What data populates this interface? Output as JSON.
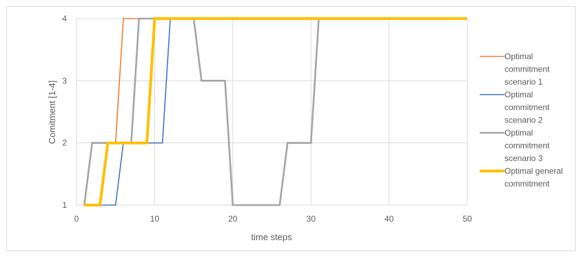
{
  "chart_data": {
    "type": "line",
    "title": "",
    "xlabel": "time steps",
    "ylabel": "Comitment [1-4]",
    "xlim": [
      0,
      50
    ],
    "ylim": [
      1,
      4
    ],
    "x_ticks": [
      0,
      10,
      20,
      30,
      40,
      50
    ],
    "y_ticks": [
      1,
      2,
      3,
      4
    ],
    "grid": true,
    "legend_position": "right",
    "series": [
      {
        "name": "Optimal commitment scenario 1",
        "color": "#ED7D31",
        "width": "thin",
        "points": [
          [
            1,
            1
          ],
          [
            3,
            1
          ],
          [
            4,
            2
          ],
          [
            5,
            2
          ],
          [
            6,
            4
          ],
          [
            50,
            4
          ]
        ]
      },
      {
        "name": "Optimal commitment scenario 2",
        "color": "#4472C4",
        "width": "thin",
        "points": [
          [
            1,
            1
          ],
          [
            5,
            1
          ],
          [
            6,
            2
          ],
          [
            11,
            2
          ],
          [
            12,
            4
          ],
          [
            50,
            4
          ]
        ]
      },
      {
        "name": "Optimal commitment scenario 3",
        "color": "#A5A5A5",
        "width": "medium",
        "points": [
          [
            1,
            1
          ],
          [
            2,
            2
          ],
          [
            7,
            2
          ],
          [
            8,
            4
          ],
          [
            15,
            4
          ],
          [
            16,
            3
          ],
          [
            19,
            3
          ],
          [
            20,
            1
          ],
          [
            26,
            1
          ],
          [
            27,
            2
          ],
          [
            30,
            2
          ],
          [
            31,
            4
          ],
          [
            50,
            4
          ]
        ]
      },
      {
        "name": "Optimal general commitment",
        "color": "#FFC000",
        "width": "thick",
        "points": [
          [
            1,
            1
          ],
          [
            3,
            1
          ],
          [
            4,
            2
          ],
          [
            9,
            2
          ],
          [
            10,
            4
          ],
          [
            50,
            4
          ]
        ]
      }
    ]
  },
  "legend": {
    "items": [
      {
        "lines": [
          "Optimal",
          "commitment",
          "scenario 1"
        ]
      },
      {
        "lines": [
          "Optimal",
          "commitment",
          "scenario 2"
        ]
      },
      {
        "lines": [
          "Optimal",
          "commitment",
          "scenario 3"
        ]
      },
      {
        "lines": [
          "Optimal general",
          "commitment"
        ]
      }
    ]
  }
}
